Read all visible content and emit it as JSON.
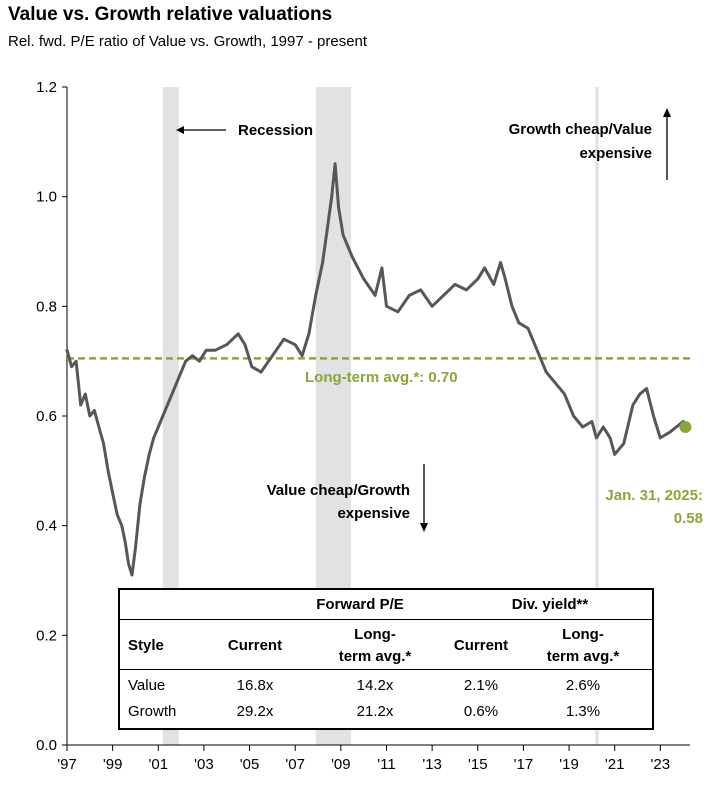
{
  "title": "Value vs. Growth relative valuations",
  "subtitle": "Rel. fwd. P/E ratio of Value vs. Growth, 1997 - present",
  "chart_data": {
    "type": "line",
    "x_axis": {
      "range": [
        1997,
        2024.3
      ],
      "tick_labels": [
        "'97",
        "'99",
        "'01",
        "'03",
        "'05",
        "'07",
        "'09",
        "'11",
        "'13",
        "'15",
        "'17",
        "'19",
        "'21",
        "'23"
      ],
      "tick_years": [
        1997,
        1999,
        2001,
        2003,
        2005,
        2007,
        2009,
        2011,
        2013,
        2015,
        2017,
        2019,
        2021,
        2023
      ]
    },
    "y_axis": {
      "range": [
        0.0,
        1.2
      ],
      "ticks": [
        0.0,
        0.2,
        0.4,
        0.6,
        0.8,
        1.0,
        1.2
      ],
      "tick_labels": [
        "0.0",
        "0.2",
        "0.4",
        "0.6",
        "0.8",
        "1.0",
        "1.2"
      ]
    },
    "recessions": [
      [
        2001.2,
        2001.9
      ],
      [
        2007.9,
        2009.45
      ],
      [
        2020.15,
        2020.3
      ]
    ],
    "long_term_avg": {
      "value": 0.705,
      "label": "Long-term avg.*:  0.70"
    },
    "current_point": {
      "x": 2024.1,
      "y": 0.58,
      "label_line1": "Jan. 31, 2025:",
      "label_line2": "0.58"
    },
    "series": [
      {
        "color": "#555759",
        "points": [
          [
            1997.0,
            0.72
          ],
          [
            1997.2,
            0.69
          ],
          [
            1997.4,
            0.7
          ],
          [
            1997.6,
            0.62
          ],
          [
            1997.8,
            0.64
          ],
          [
            1998.0,
            0.6
          ],
          [
            1998.2,
            0.61
          ],
          [
            1998.4,
            0.58
          ],
          [
            1998.6,
            0.55
          ],
          [
            1998.8,
            0.5
          ],
          [
            1999.0,
            0.46
          ],
          [
            1999.2,
            0.42
          ],
          [
            1999.4,
            0.4
          ],
          [
            1999.55,
            0.37
          ],
          [
            1999.7,
            0.33
          ],
          [
            1999.85,
            0.31
          ],
          [
            2000.0,
            0.36
          ],
          [
            2000.2,
            0.44
          ],
          [
            2000.4,
            0.49
          ],
          [
            2000.6,
            0.53
          ],
          [
            2000.8,
            0.56
          ],
          [
            2001.0,
            0.58
          ],
          [
            2001.3,
            0.61
          ],
          [
            2001.6,
            0.64
          ],
          [
            2001.9,
            0.67
          ],
          [
            2002.2,
            0.7
          ],
          [
            2002.5,
            0.71
          ],
          [
            2002.8,
            0.7
          ],
          [
            2003.1,
            0.72
          ],
          [
            2003.5,
            0.72
          ],
          [
            2004.0,
            0.73
          ],
          [
            2004.5,
            0.75
          ],
          [
            2004.8,
            0.73
          ],
          [
            2005.1,
            0.69
          ],
          [
            2005.5,
            0.68
          ],
          [
            2006.0,
            0.71
          ],
          [
            2006.5,
            0.74
          ],
          [
            2007.0,
            0.73
          ],
          [
            2007.3,
            0.71
          ],
          [
            2007.6,
            0.75
          ],
          [
            2007.9,
            0.82
          ],
          [
            2008.2,
            0.88
          ],
          [
            2008.4,
            0.94
          ],
          [
            2008.6,
            1.0
          ],
          [
            2008.75,
            1.06
          ],
          [
            2008.9,
            0.98
          ],
          [
            2009.1,
            0.93
          ],
          [
            2009.5,
            0.89
          ],
          [
            2010.0,
            0.85
          ],
          [
            2010.5,
            0.82
          ],
          [
            2010.8,
            0.87
          ],
          [
            2011.0,
            0.8
          ],
          [
            2011.5,
            0.79
          ],
          [
            2012.0,
            0.82
          ],
          [
            2012.5,
            0.83
          ],
          [
            2013.0,
            0.8
          ],
          [
            2013.5,
            0.82
          ],
          [
            2014.0,
            0.84
          ],
          [
            2014.5,
            0.83
          ],
          [
            2015.0,
            0.85
          ],
          [
            2015.3,
            0.87
          ],
          [
            2015.7,
            0.84
          ],
          [
            2016.0,
            0.88
          ],
          [
            2016.2,
            0.85
          ],
          [
            2016.5,
            0.8
          ],
          [
            2016.8,
            0.77
          ],
          [
            2017.2,
            0.76
          ],
          [
            2017.6,
            0.72
          ],
          [
            2018.0,
            0.68
          ],
          [
            2018.4,
            0.66
          ],
          [
            2018.8,
            0.64
          ],
          [
            2019.2,
            0.6
          ],
          [
            2019.6,
            0.58
          ],
          [
            2020.0,
            0.59
          ],
          [
            2020.2,
            0.56
          ],
          [
            2020.5,
            0.58
          ],
          [
            2020.8,
            0.56
          ],
          [
            2021.0,
            0.53
          ],
          [
            2021.4,
            0.55
          ],
          [
            2021.8,
            0.62
          ],
          [
            2022.1,
            0.64
          ],
          [
            2022.4,
            0.65
          ],
          [
            2022.7,
            0.6
          ],
          [
            2023.0,
            0.56
          ],
          [
            2023.4,
            0.57
          ],
          [
            2023.7,
            0.58
          ],
          [
            2024.0,
            0.59
          ]
        ]
      }
    ],
    "annotations": {
      "recession": "Recession",
      "growth_cheap_line1": "Growth cheap/Value",
      "growth_cheap_line2": "expensive",
      "value_cheap_line1": "Value cheap/Growth",
      "value_cheap_line2": "expensive"
    }
  },
  "table": {
    "group_headers": [
      "Forward P/E",
      "Div. yield**"
    ],
    "columns": [
      "Style",
      "Current",
      "Long-",
      "term avg.*",
      "Current",
      "Long-",
      "term avg.*"
    ],
    "rows": [
      {
        "style": "Value",
        "pe_current": "16.8x",
        "pe_avg": "14.2x",
        "dy_current": "2.1%",
        "dy_avg": "2.6%"
      },
      {
        "style": "Growth",
        "pe_current": "29.2x",
        "pe_avg": "21.2x",
        "dy_current": "0.6%",
        "dy_avg": "1.3%"
      }
    ]
  },
  "colors": {
    "line": "#555759",
    "recession": "#e2e2e4",
    "avg": "#8aa63a",
    "point": "#8aa63a"
  }
}
